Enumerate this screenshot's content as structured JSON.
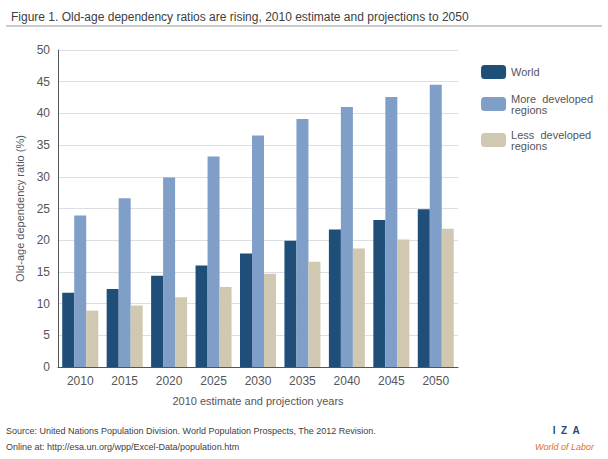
{
  "chart_data": {
    "type": "bar",
    "title": "Figure 1. Old-age dependency ratios are rising, 2010 estimate and projections to 2050",
    "x_label": "2010 estimate and projection years",
    "y_label": "Old-age dependency ratio (%)",
    "categories": [
      "2010",
      "2015",
      "2020",
      "2025",
      "2030",
      "2035",
      "2040",
      "2045",
      "2050"
    ],
    "series": [
      {
        "name": "World",
        "color": "#1F4E79",
        "values": [
          11.7,
          12.3,
          14.4,
          16.0,
          17.9,
          19.9,
          21.7,
          23.2,
          24.9
        ]
      },
      {
        "name": "More  developed\nregions",
        "color": "#7F9EC8",
        "values": [
          23.9,
          26.6,
          29.9,
          33.2,
          36.5,
          39.1,
          41.0,
          42.6,
          44.5
        ]
      },
      {
        "name": "Less  developed\nregions",
        "color": "#d0c8b0",
        "values": [
          8.9,
          9.7,
          11.0,
          12.6,
          14.7,
          16.6,
          18.7,
          20.1,
          21.8
        ]
      }
    ],
    "ylim": [
      0,
      50
    ],
    "yticks": [
      0,
      5,
      10,
      15,
      20,
      25,
      30,
      35,
      40,
      45,
      50
    ],
    "grid": true,
    "legend": "right",
    "annotations": [
      "Source: United Nations Population Division. World Population Prospects, The 2012 Revision.",
      "Online at: http://esa.un.org/wpp/Excel-Data/population.htm",
      "I  Z  A",
      "World of Labor"
    ]
  }
}
